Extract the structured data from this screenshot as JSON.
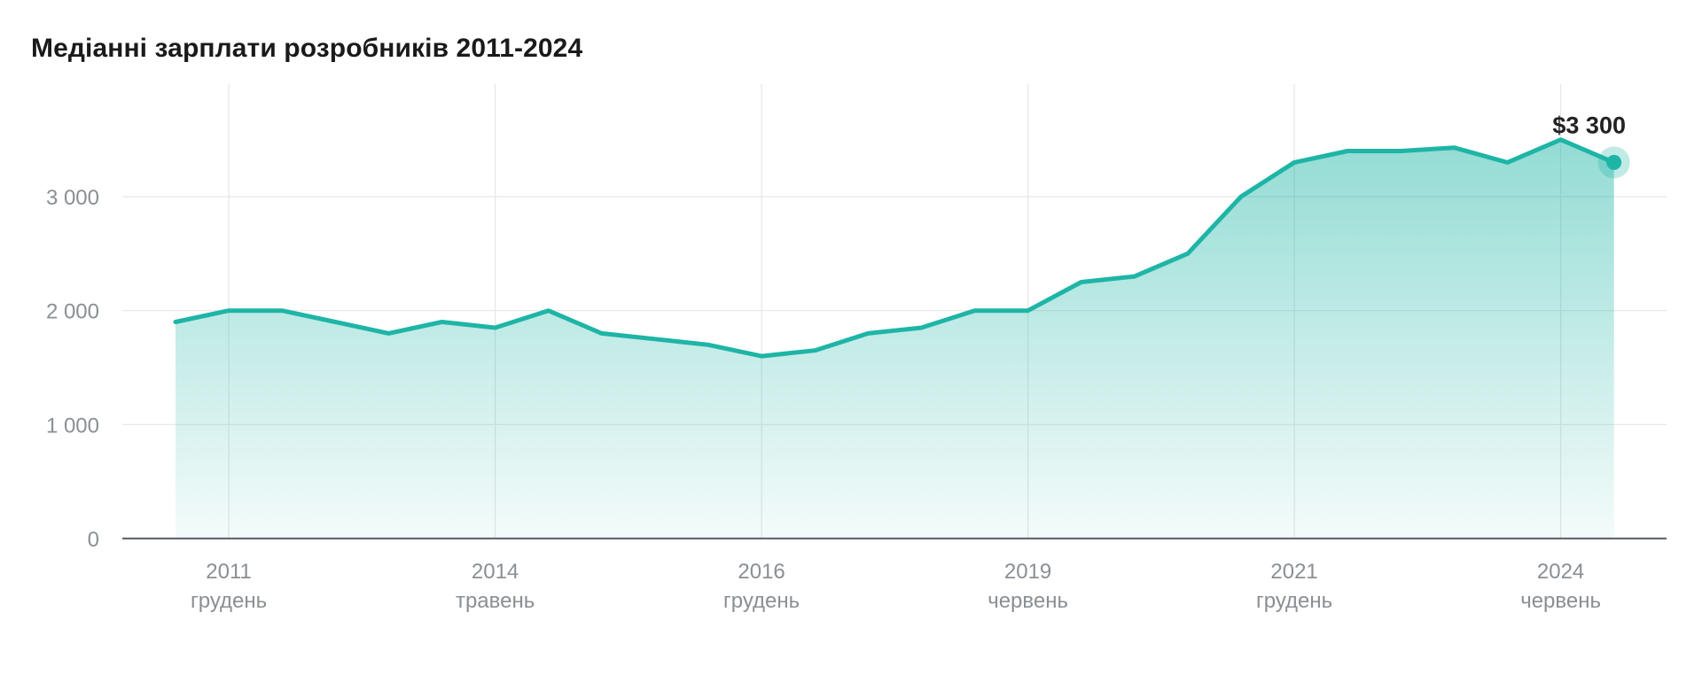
{
  "chart_data": {
    "type": "area",
    "title": "Медіанні зарплати розробників 2011-2024",
    "xlabel": "",
    "ylabel": "",
    "ylim": [
      0,
      3700
    ],
    "yticks": [
      {
        "value": 0,
        "label": "0"
      },
      {
        "value": 1000,
        "label": "1 000"
      },
      {
        "value": 2000,
        "label": "2 000"
      },
      {
        "value": 3000,
        "label": "3 000"
      }
    ],
    "xticks": [
      {
        "index": 1,
        "year": "2011",
        "month": "грудень"
      },
      {
        "index": 6,
        "year": "2014",
        "month": "травень"
      },
      {
        "index": 11,
        "year": "2016",
        "month": "грудень"
      },
      {
        "index": 16,
        "year": "2019",
        "month": "червень"
      },
      {
        "index": 21,
        "year": "2021",
        "month": "грудень"
      },
      {
        "index": 26,
        "year": "2024",
        "month": "червень"
      }
    ],
    "grid": true,
    "color": "#1eb5a6",
    "values": [
      1900,
      2000,
      2000,
      1900,
      1800,
      1900,
      1850,
      2000,
      1800,
      1750,
      1700,
      1600,
      1650,
      1800,
      1850,
      2000,
      2000,
      2250,
      2300,
      2500,
      3000,
      3300,
      3400,
      3400,
      3430,
      3300,
      3500,
      3300
    ],
    "last_point_label": "$3 300"
  }
}
